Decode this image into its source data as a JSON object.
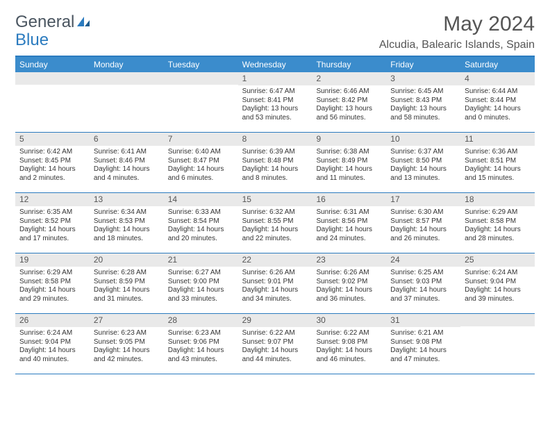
{
  "logo": {
    "text1": "General",
    "text2": "Blue"
  },
  "title": "May 2024",
  "location": "Alcudia, Balearic Islands, Spain",
  "colors": {
    "header_bg": "#3b8ccc",
    "border": "#2b7bbf",
    "daynum_bg": "#e9e9e9",
    "text": "#333333",
    "title_text": "#555555"
  },
  "day_labels": [
    "Sunday",
    "Monday",
    "Tuesday",
    "Wednesday",
    "Thursday",
    "Friday",
    "Saturday"
  ],
  "weeks": [
    [
      null,
      null,
      null,
      {
        "n": "1",
        "sr": "Sunrise: 6:47 AM",
        "ss": "Sunset: 8:41 PM",
        "d1": "Daylight: 13 hours",
        "d2": "and 53 minutes."
      },
      {
        "n": "2",
        "sr": "Sunrise: 6:46 AM",
        "ss": "Sunset: 8:42 PM",
        "d1": "Daylight: 13 hours",
        "d2": "and 56 minutes."
      },
      {
        "n": "3",
        "sr": "Sunrise: 6:45 AM",
        "ss": "Sunset: 8:43 PM",
        "d1": "Daylight: 13 hours",
        "d2": "and 58 minutes."
      },
      {
        "n": "4",
        "sr": "Sunrise: 6:44 AM",
        "ss": "Sunset: 8:44 PM",
        "d1": "Daylight: 14 hours",
        "d2": "and 0 minutes."
      }
    ],
    [
      {
        "n": "5",
        "sr": "Sunrise: 6:42 AM",
        "ss": "Sunset: 8:45 PM",
        "d1": "Daylight: 14 hours",
        "d2": "and 2 minutes."
      },
      {
        "n": "6",
        "sr": "Sunrise: 6:41 AM",
        "ss": "Sunset: 8:46 PM",
        "d1": "Daylight: 14 hours",
        "d2": "and 4 minutes."
      },
      {
        "n": "7",
        "sr": "Sunrise: 6:40 AM",
        "ss": "Sunset: 8:47 PM",
        "d1": "Daylight: 14 hours",
        "d2": "and 6 minutes."
      },
      {
        "n": "8",
        "sr": "Sunrise: 6:39 AM",
        "ss": "Sunset: 8:48 PM",
        "d1": "Daylight: 14 hours",
        "d2": "and 8 minutes."
      },
      {
        "n": "9",
        "sr": "Sunrise: 6:38 AM",
        "ss": "Sunset: 8:49 PM",
        "d1": "Daylight: 14 hours",
        "d2": "and 11 minutes."
      },
      {
        "n": "10",
        "sr": "Sunrise: 6:37 AM",
        "ss": "Sunset: 8:50 PM",
        "d1": "Daylight: 14 hours",
        "d2": "and 13 minutes."
      },
      {
        "n": "11",
        "sr": "Sunrise: 6:36 AM",
        "ss": "Sunset: 8:51 PM",
        "d1": "Daylight: 14 hours",
        "d2": "and 15 minutes."
      }
    ],
    [
      {
        "n": "12",
        "sr": "Sunrise: 6:35 AM",
        "ss": "Sunset: 8:52 PM",
        "d1": "Daylight: 14 hours",
        "d2": "and 17 minutes."
      },
      {
        "n": "13",
        "sr": "Sunrise: 6:34 AM",
        "ss": "Sunset: 8:53 PM",
        "d1": "Daylight: 14 hours",
        "d2": "and 18 minutes."
      },
      {
        "n": "14",
        "sr": "Sunrise: 6:33 AM",
        "ss": "Sunset: 8:54 PM",
        "d1": "Daylight: 14 hours",
        "d2": "and 20 minutes."
      },
      {
        "n": "15",
        "sr": "Sunrise: 6:32 AM",
        "ss": "Sunset: 8:55 PM",
        "d1": "Daylight: 14 hours",
        "d2": "and 22 minutes."
      },
      {
        "n": "16",
        "sr": "Sunrise: 6:31 AM",
        "ss": "Sunset: 8:56 PM",
        "d1": "Daylight: 14 hours",
        "d2": "and 24 minutes."
      },
      {
        "n": "17",
        "sr": "Sunrise: 6:30 AM",
        "ss": "Sunset: 8:57 PM",
        "d1": "Daylight: 14 hours",
        "d2": "and 26 minutes."
      },
      {
        "n": "18",
        "sr": "Sunrise: 6:29 AM",
        "ss": "Sunset: 8:58 PM",
        "d1": "Daylight: 14 hours",
        "d2": "and 28 minutes."
      }
    ],
    [
      {
        "n": "19",
        "sr": "Sunrise: 6:29 AM",
        "ss": "Sunset: 8:58 PM",
        "d1": "Daylight: 14 hours",
        "d2": "and 29 minutes."
      },
      {
        "n": "20",
        "sr": "Sunrise: 6:28 AM",
        "ss": "Sunset: 8:59 PM",
        "d1": "Daylight: 14 hours",
        "d2": "and 31 minutes."
      },
      {
        "n": "21",
        "sr": "Sunrise: 6:27 AM",
        "ss": "Sunset: 9:00 PM",
        "d1": "Daylight: 14 hours",
        "d2": "and 33 minutes."
      },
      {
        "n": "22",
        "sr": "Sunrise: 6:26 AM",
        "ss": "Sunset: 9:01 PM",
        "d1": "Daylight: 14 hours",
        "d2": "and 34 minutes."
      },
      {
        "n": "23",
        "sr": "Sunrise: 6:26 AM",
        "ss": "Sunset: 9:02 PM",
        "d1": "Daylight: 14 hours",
        "d2": "and 36 minutes."
      },
      {
        "n": "24",
        "sr": "Sunrise: 6:25 AM",
        "ss": "Sunset: 9:03 PM",
        "d1": "Daylight: 14 hours",
        "d2": "and 37 minutes."
      },
      {
        "n": "25",
        "sr": "Sunrise: 6:24 AM",
        "ss": "Sunset: 9:04 PM",
        "d1": "Daylight: 14 hours",
        "d2": "and 39 minutes."
      }
    ],
    [
      {
        "n": "26",
        "sr": "Sunrise: 6:24 AM",
        "ss": "Sunset: 9:04 PM",
        "d1": "Daylight: 14 hours",
        "d2": "and 40 minutes."
      },
      {
        "n": "27",
        "sr": "Sunrise: 6:23 AM",
        "ss": "Sunset: 9:05 PM",
        "d1": "Daylight: 14 hours",
        "d2": "and 42 minutes."
      },
      {
        "n": "28",
        "sr": "Sunrise: 6:23 AM",
        "ss": "Sunset: 9:06 PM",
        "d1": "Daylight: 14 hours",
        "d2": "and 43 minutes."
      },
      {
        "n": "29",
        "sr": "Sunrise: 6:22 AM",
        "ss": "Sunset: 9:07 PM",
        "d1": "Daylight: 14 hours",
        "d2": "and 44 minutes."
      },
      {
        "n": "30",
        "sr": "Sunrise: 6:22 AM",
        "ss": "Sunset: 9:08 PM",
        "d1": "Daylight: 14 hours",
        "d2": "and 46 minutes."
      },
      {
        "n": "31",
        "sr": "Sunrise: 6:21 AM",
        "ss": "Sunset: 9:08 PM",
        "d1": "Daylight: 14 hours",
        "d2": "and 47 minutes."
      },
      null
    ]
  ]
}
